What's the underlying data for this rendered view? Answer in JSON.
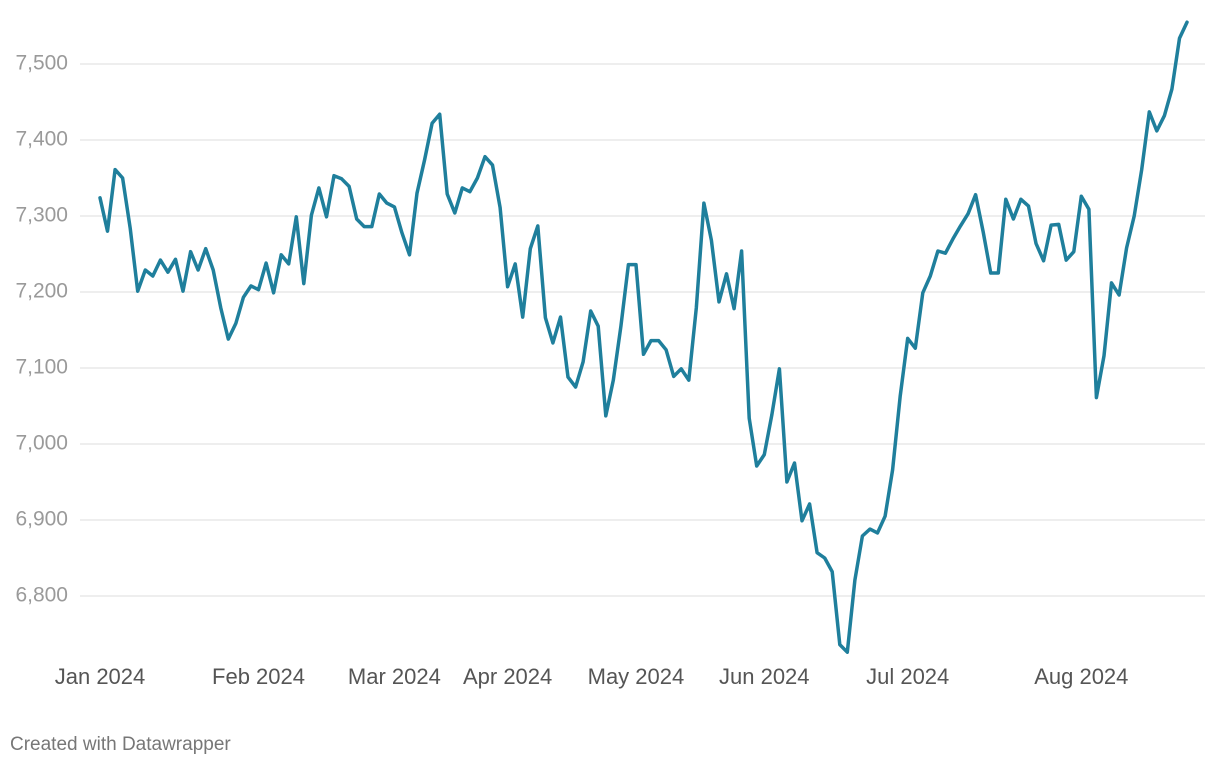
{
  "chart_data": {
    "type": "line",
    "footer": "Created with Datawrapper",
    "categories": [
      "Jan 2024",
      null,
      null,
      null,
      null,
      null,
      null,
      null,
      null,
      null,
      null,
      null,
      null,
      null,
      null,
      null,
      null,
      null,
      null,
      null,
      null,
      "Feb 2024",
      null,
      null,
      null,
      null,
      null,
      null,
      null,
      null,
      null,
      null,
      null,
      null,
      null,
      null,
      null,
      null,
      null,
      "Mar 2024",
      null,
      null,
      null,
      null,
      null,
      null,
      null,
      null,
      null,
      null,
      null,
      null,
      null,
      null,
      "Apr 2024",
      null,
      null,
      null,
      null,
      null,
      null,
      null,
      null,
      null,
      null,
      null,
      null,
      null,
      null,
      null,
      null,
      "May 2024",
      null,
      null,
      null,
      null,
      null,
      null,
      null,
      null,
      null,
      null,
      null,
      null,
      null,
      null,
      null,
      null,
      "Jun 2024",
      null,
      null,
      null,
      null,
      null,
      null,
      null,
      null,
      null,
      null,
      null,
      null,
      null,
      null,
      null,
      null,
      null,
      null,
      "Jul 2024",
      null,
      null,
      null,
      null,
      null,
      null,
      null,
      null,
      null,
      null,
      null,
      null,
      null,
      null,
      null,
      null,
      null,
      null,
      null,
      null,
      null,
      null,
      "Aug 2024",
      null,
      null,
      null,
      null,
      null,
      null,
      null,
      null,
      null,
      null,
      null,
      null,
      null,
      null
    ],
    "series": [
      {
        "color": "#1f7f9c",
        "values": [
          7324,
          7280,
          7361,
          7350,
          7284,
          7201,
          7229,
          7221,
          7242,
          7226,
          7243,
          7201,
          7253,
          7229,
          7257,
          7229,
          7179,
          7138,
          7159,
          7193,
          7208,
          7203,
          7238,
          7199,
          7249,
          7237,
          7299,
          7211,
          7301,
          7337,
          7299,
          7353,
          7349,
          7339,
          7296,
          7286,
          7286,
          7329,
          7317,
          7312,
          7278,
          7249,
          7330,
          7374,
          7422,
          7434,
          7329,
          7304,
          7337,
          7332,
          7350,
          7378,
          7367,
          7311,
          7207,
          7237,
          7167,
          7257,
          7287,
          7166,
          7133,
          7167,
          7088,
          7075,
          7108,
          7175,
          7155,
          7037,
          7084,
          7155,
          7236,
          7236,
          7118,
          7136,
          7136,
          7124,
          7089,
          7099,
          7084,
          7179,
          7317,
          7268,
          7187,
          7224,
          7178,
          7254,
          7034,
          6971,
          6986,
          7038,
          7099,
          6950,
          6975,
          6899,
          6921,
          6857,
          6850,
          6832,
          6736,
          6726,
          6821,
          6879,
          6888,
          6883,
          6905,
          6966,
          7063,
          7139,
          7126,
          7199,
          7221,
          7254,
          7251,
          7270,
          7287,
          7303,
          7328,
          7279,
          7225,
          7225,
          7322,
          7296,
          7322,
          7313,
          7264,
          7241,
          7288,
          7289,
          7242,
          7253,
          7326,
          7309,
          7061,
          7116,
          7212,
          7196,
          7258,
          7300,
          7361,
          7437,
          7412,
          7432,
          7467,
          7534,
          7555
        ]
      }
    ],
    "ylim": [
      6720,
      7560
    ],
    "yticks": [
      {
        "value": 6800,
        "label": "6,800"
      },
      {
        "value": 6900,
        "label": "6,900"
      },
      {
        "value": 7000,
        "label": "7,000"
      },
      {
        "value": 7100,
        "label": "7,100"
      },
      {
        "value": 7200,
        "label": "7,200"
      },
      {
        "value": 7300,
        "label": "7,300"
      },
      {
        "value": 7400,
        "label": "7,400"
      },
      {
        "value": 7500,
        "label": "7,500"
      }
    ],
    "grid": true
  }
}
